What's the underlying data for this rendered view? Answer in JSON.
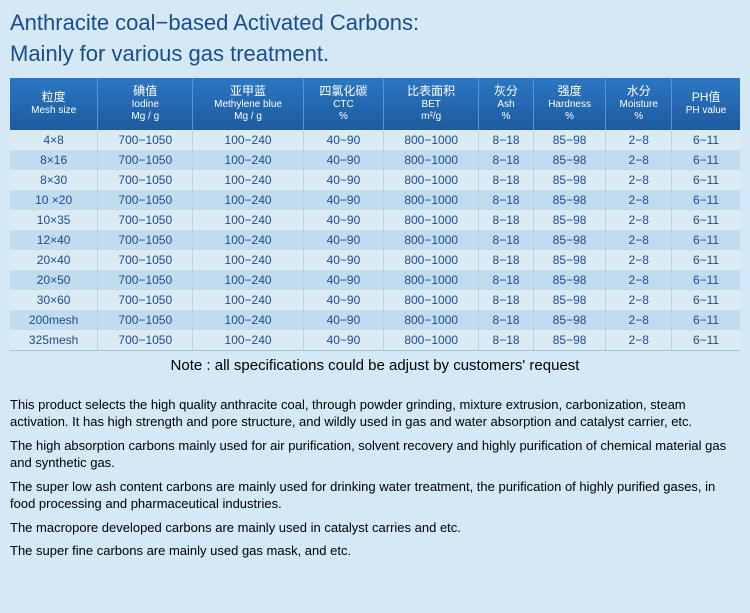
{
  "title_line1": "Anthracite coal−based Activated Carbons:",
  "title_line2": "Mainly for various gas treatment.",
  "columns": [
    {
      "cn": "粒度",
      "en": "Mesh size",
      "unit": ""
    },
    {
      "cn": "碘值",
      "en": "Iodine",
      "unit": "Mg / g"
    },
    {
      "cn": "亚甲蓝",
      "en": "Methylene blue",
      "unit": "Mg / g"
    },
    {
      "cn": "四氯化碳",
      "en": "CTC",
      "unit": "%"
    },
    {
      "cn": "比表面积",
      "en": "BET",
      "unit": "m²/g"
    },
    {
      "cn": "灰分",
      "en": "Ash",
      "unit": "%"
    },
    {
      "cn": "强度",
      "en": "Hardness",
      "unit": "%"
    },
    {
      "cn": "水分",
      "en": "Moisture",
      "unit": "%"
    },
    {
      "cn": "PH值",
      "en": "PH value",
      "unit": ""
    }
  ],
  "rows": [
    [
      "4×8",
      "700−1050",
      "100−240",
      "40−90",
      "800−1000",
      "8−18",
      "85−98",
      "2−8",
      "6−11"
    ],
    [
      "8×16",
      "700−1050",
      "100−240",
      "40−90",
      "800−1000",
      "8−18",
      "85−98",
      "2−8",
      "6−11"
    ],
    [
      "8×30",
      "700−1050",
      "100−240",
      "40−90",
      "800−1000",
      "8−18",
      "85−98",
      "2−8",
      "6−11"
    ],
    [
      "10 ×20",
      "700−1050",
      "100−240",
      "40−90",
      "800−1000",
      "8−18",
      "85−98",
      "2−8",
      "6−11"
    ],
    [
      "10×35",
      "700−1050",
      "100−240",
      "40−90",
      "800−1000",
      "8−18",
      "85−98",
      "2−8",
      "6−11"
    ],
    [
      "12×40",
      "700−1050",
      "100−240",
      "40−90",
      "800−1000",
      "8−18",
      "85−98",
      "2−8",
      "6−11"
    ],
    [
      "20×40",
      "700−1050",
      "100−240",
      "40−90",
      "800−1000",
      "8−18",
      "85−98",
      "2−8",
      "6−11"
    ],
    [
      "20×50",
      "700−1050",
      "100−240",
      "40−90",
      "800−1000",
      "8−18",
      "85−98",
      "2−8",
      "6−11"
    ],
    [
      "30×60",
      "700−1050",
      "100−240",
      "40−90",
      "800−1000",
      "8−18",
      "85−98",
      "2−8",
      "6−11"
    ],
    [
      "200mesh",
      "700−1050",
      "100−240",
      "40−90",
      "800−1000",
      "8−18",
      "85−98",
      "2−8",
      "6−11"
    ],
    [
      "325mesh",
      "700−1050",
      "100−240",
      "40−90",
      "800−1000",
      "8−18",
      "85−98",
      "2−8",
      "6−11"
    ]
  ],
  "stripe_pattern": [
    "a",
    "b",
    "a",
    "b",
    "a",
    "b",
    "a",
    "b",
    "a",
    "b",
    "a"
  ],
  "note": "Note : all specifications could be adjust by customers' request",
  "paragraphs": [
    "This product selects  the high quality anthracite coal, through powder grinding, mixture  extrusion, carbonization, steam activation. It has high strength and pore structure, and wildly used in gas and water absorption and catalyst carrier, etc.",
    "The high absorption carbons mainly used for air purification, solvent recovery and highly purification of chemical material gas and synthetic gas.",
    "The super low ash content carbons are mainly used for drinking water treatment, the purification of highly purified gases, in food processing and pharmaceutical industries.",
    "The macropore developed carbons are mainly used in catalyst carries and etc.",
    "The super fine carbons are mainly used gas mask, and etc."
  ]
}
